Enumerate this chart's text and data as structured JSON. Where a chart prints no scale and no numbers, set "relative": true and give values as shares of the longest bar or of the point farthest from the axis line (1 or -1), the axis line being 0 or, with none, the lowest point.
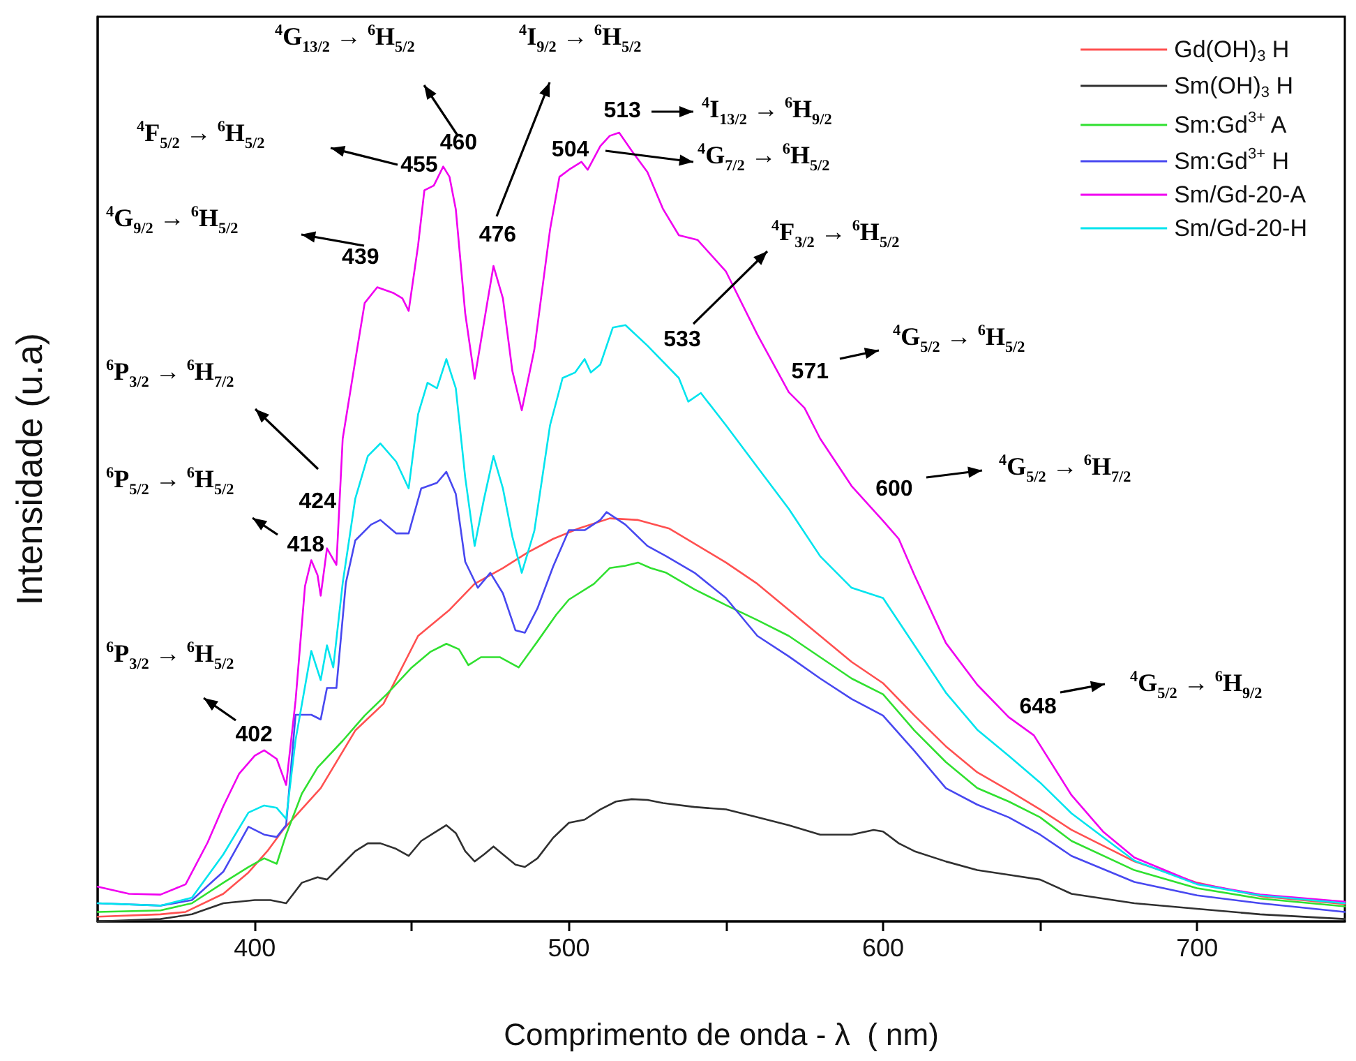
{
  "chart_data": {
    "type": "line",
    "relative": true,
    "xlabel": "Comprimento de onda - λ  ( nm)",
    "ylabel": "Intensidade (u.a)",
    "xlim": [
      350,
      747
    ],
    "xticks": [
      400,
      {
        "value": 450,
        "label": null
      },
      500,
      {
        "value": 550,
        "label": null
      },
      600,
      {
        "value": 650,
        "label": null
      },
      700
    ],
    "legend": "top right",
    "marker": "none",
    "series": [
      {
        "name": "Gd(OH)$_{3}$ H",
        "color": "#ff5050",
        "x": [
          350,
          370,
          378,
          390,
          398,
          404,
          409,
          421,
          432,
          441,
          452,
          462,
          470,
          479,
          487,
          495,
          503,
          513,
          522,
          532,
          550,
          560,
          570,
          580,
          590,
          600,
          610,
          620,
          630,
          640,
          650,
          660,
          680,
          700,
          720,
          747
        ],
        "values": [
          0.006,
          0.009,
          0.012,
          0.035,
          0.062,
          0.089,
          0.116,
          0.169,
          0.242,
          0.276,
          0.362,
          0.395,
          0.428,
          0.448,
          0.468,
          0.485,
          0.498,
          0.511,
          0.509,
          0.498,
          0.455,
          0.428,
          0.395,
          0.362,
          0.329,
          0.302,
          0.261,
          0.222,
          0.189,
          0.166,
          0.142,
          0.116,
          0.076,
          0.049,
          0.032,
          0.022
        ]
      },
      {
        "name": "Sm(OH)$_{3}$ H",
        "color": "#303030",
        "x": [
          350,
          370,
          380,
          390,
          400,
          405,
          410,
          415,
          420,
          423,
          427,
          432,
          436,
          440,
          445,
          449,
          453,
          457,
          461,
          464,
          467,
          470,
          473,
          476,
          479,
          483,
          486,
          490,
          495,
          500,
          505,
          510,
          515,
          520,
          525,
          530,
          540,
          550,
          560,
          570,
          580,
          590,
          597,
          600,
          605,
          610,
          620,
          630,
          640,
          650,
          660,
          680,
          700,
          720,
          747
        ],
        "values": [
          0,
          0.003,
          0.009,
          0.023,
          0.027,
          0.027,
          0.023,
          0.049,
          0.056,
          0.053,
          0.069,
          0.089,
          0.099,
          0.099,
          0.092,
          0.083,
          0.102,
          0.112,
          0.122,
          0.112,
          0.089,
          0.076,
          0.085,
          0.095,
          0.085,
          0.072,
          0.069,
          0.08,
          0.106,
          0.125,
          0.129,
          0.142,
          0.152,
          0.155,
          0.154,
          0.15,
          0.145,
          0.142,
          0.132,
          0.122,
          0.11,
          0.11,
          0.116,
          0.114,
          0.099,
          0.089,
          0.076,
          0.065,
          0.059,
          0.053,
          0.035,
          0.023,
          0.016,
          0.009,
          0.003
        ]
      },
      {
        "name": "Sm:Gd$^{3+}$ A",
        "color": "#30e030",
        "x": [
          350,
          370,
          380,
          390,
          398,
          403,
          407,
          410,
          415,
          420,
          428,
          435,
          442,
          450,
          456,
          461,
          465,
          468,
          472,
          478,
          484,
          490,
          496,
          500,
          508,
          513,
          518,
          522,
          526,
          531,
          540,
          550,
          560,
          570,
          580,
          590,
          600,
          610,
          620,
          630,
          640,
          650,
          660,
          680,
          700,
          720,
          747
        ],
        "values": [
          0.012,
          0.014,
          0.023,
          0.049,
          0.069,
          0.08,
          0.073,
          0.11,
          0.162,
          0.195,
          0.229,
          0.261,
          0.288,
          0.322,
          0.342,
          0.352,
          0.345,
          0.325,
          0.335,
          0.335,
          0.322,
          0.355,
          0.389,
          0.408,
          0.428,
          0.448,
          0.451,
          0.455,
          0.448,
          0.442,
          0.421,
          0.401,
          0.382,
          0.362,
          0.335,
          0.308,
          0.288,
          0.242,
          0.202,
          0.169,
          0.152,
          0.132,
          0.102,
          0.065,
          0.042,
          0.029,
          0.019
        ]
      },
      {
        "name": "Sm:Gd$^{3+}$ H",
        "color": "#4848f0",
        "x": [
          350,
          370,
          380,
          390,
          398,
          403,
          407,
          410,
          413,
          418,
          421,
          423,
          426,
          429,
          432,
          437,
          440,
          445,
          449,
          453,
          458,
          461,
          464,
          467,
          471,
          475,
          479,
          483,
          486,
          490,
          495,
          500,
          505,
          510,
          512,
          518,
          525,
          531,
          540,
          550,
          560,
          570,
          580,
          590,
          600,
          610,
          620,
          630,
          640,
          650,
          660,
          680,
          700,
          720,
          747
        ],
        "values": [
          0.023,
          0.02,
          0.027,
          0.063,
          0.12,
          0.11,
          0.107,
          0.122,
          0.262,
          0.262,
          0.256,
          0.296,
          0.296,
          0.429,
          0.483,
          0.503,
          0.509,
          0.492,
          0.492,
          0.549,
          0.556,
          0.57,
          0.542,
          0.456,
          0.423,
          0.442,
          0.416,
          0.369,
          0.366,
          0.397,
          0.45,
          0.496,
          0.496,
          0.509,
          0.519,
          0.503,
          0.476,
          0.463,
          0.442,
          0.41,
          0.362,
          0.336,
          0.308,
          0.282,
          0.261,
          0.216,
          0.169,
          0.148,
          0.132,
          0.11,
          0.083,
          0.05,
          0.033,
          0.023,
          0.012
        ]
      },
      {
        "name": "Sm/Gd-20-A",
        "color": "#f000f0",
        "x": [
          350,
          360,
          370,
          378,
          385,
          390,
          395,
          400,
          403,
          407,
          410,
          413,
          416,
          418,
          420,
          421,
          423,
          426,
          428,
          432,
          435,
          439,
          444,
          447,
          449,
          452,
          454,
          457,
          460,
          462,
          464,
          467,
          470,
          474,
          476,
          479,
          482,
          485,
          489,
          494,
          497,
          500,
          504,
          506,
          510,
          513,
          516,
          520,
          525,
          530,
          535,
          541,
          550,
          560,
          570,
          575,
          580,
          590,
          600,
          605,
          610,
          620,
          630,
          640,
          648,
          660,
          670,
          680,
          700,
          720,
          747
        ],
        "values": [
          0.044,
          0.035,
          0.034,
          0.047,
          0.1,
          0.146,
          0.187,
          0.21,
          0.217,
          0.206,
          0.173,
          0.28,
          0.425,
          0.458,
          0.439,
          0.413,
          0.473,
          0.452,
          0.612,
          0.711,
          0.784,
          0.804,
          0.797,
          0.79,
          0.774,
          0.857,
          0.927,
          0.933,
          0.957,
          0.944,
          0.903,
          0.771,
          0.688,
          0.784,
          0.831,
          0.79,
          0.698,
          0.648,
          0.725,
          0.877,
          0.944,
          0.953,
          0.963,
          0.953,
          0.983,
          0.996,
          1,
          0.977,
          0.95,
          0.903,
          0.87,
          0.864,
          0.824,
          0.744,
          0.671,
          0.651,
          0.612,
          0.552,
          0.508,
          0.485,
          0.439,
          0.353,
          0.3,
          0.259,
          0.236,
          0.16,
          0.114,
          0.081,
          0.048,
          0.034,
          0.025
        ]
      },
      {
        "name": "Sm/Gd-20-H",
        "color": "#00e4ee",
        "x": [
          350,
          370,
          380,
          390,
          398,
          403,
          407,
          410,
          413,
          418,
          421,
          423,
          425,
          428,
          432,
          436,
          440,
          445,
          449,
          452,
          455,
          458,
          461,
          464,
          467,
          470,
          473,
          476,
          479,
          482,
          485,
          489,
          494,
          498,
          502,
          505,
          507,
          510,
          514,
          518,
          525,
          535,
          538,
          542,
          550,
          560,
          570,
          580,
          590,
          600,
          610,
          620,
          630,
          640,
          650,
          660,
          680,
          700,
          720,
          747
        ],
        "values": [
          0.023,
          0.02,
          0.03,
          0.085,
          0.138,
          0.147,
          0.144,
          0.13,
          0.23,
          0.343,
          0.306,
          0.35,
          0.322,
          0.429,
          0.536,
          0.59,
          0.606,
          0.583,
          0.549,
          0.643,
          0.683,
          0.676,
          0.713,
          0.676,
          0.563,
          0.476,
          0.536,
          0.59,
          0.549,
          0.488,
          0.442,
          0.495,
          0.629,
          0.689,
          0.696,
          0.713,
          0.696,
          0.706,
          0.753,
          0.756,
          0.73,
          0.689,
          0.659,
          0.67,
          0.629,
          0.576,
          0.523,
          0.463,
          0.423,
          0.41,
          0.35,
          0.29,
          0.243,
          0.21,
          0.176,
          0.137,
          0.077,
          0.047,
          0.033,
          0.023
        ]
      }
    ],
    "annotations": [
      {
        "text": "402",
        "x": 402,
        "y": 0.217
      },
      "$^{6}$P$_{3/2}$ → $^{6}$H$_{5/2}$",
      {
        "text": "418",
        "x": 418,
        "y": 0.458
      },
      "$^{6}$P$_{5/2}$ → $^{6}$H$_{5/2}$",
      {
        "text": "424",
        "x": 424,
        "y": 0.473
      },
      "$^{6}$P$_{3/2}$ → $^{6}$H$_{7/2}$",
      {
        "text": "439",
        "x": 439,
        "y": 0.804
      },
      "$^{4}$G$_{9/2}$ → $^{6}$H$_{5/2}$",
      {
        "text": "455",
        "x": 455,
        "y": 0.933
      },
      "$^{4}$F$_{5/2}$ → $^{6}$H$_{5/2}$",
      {
        "text": "460",
        "x": 460,
        "y": 0.957
      },
      "$^{4}$G$_{13/2}$ → $^{6}$H$_{5/2}$",
      {
        "text": "476",
        "x": 476,
        "y": 0.831
      },
      "$^{4}$I$_{9/2}$ → $^{6}$H$_{5/2}$",
      {
        "text": "504",
        "x": 504,
        "y": 0.963
      },
      "$^{4}$G$_{7/2}$ → $^{6}$H$_{5/2}$",
      {
        "text": "513",
        "x": 513,
        "y": 0.996
      },
      "$^{4}$I$_{13/2}$ → $^{6}$H$_{9/2}$",
      "533",
      "$^{4}$F$_{3/2}$ → $^{6}$H$_{5/2}$",
      {
        "text": "571",
        "x": 571,
        "y": 0.671
      },
      "$^{4}$G$_{5/2}$ → $^{6}$H$_{5/2}$",
      {
        "text": "600",
        "x": 600,
        "y": 0.508
      },
      "$^{4}$G$_{5/2}$ → $^{6}$H$_{7/2}$",
      {
        "text": "648",
        "x": 648,
        "y": 0.236
      },
      "$^{4}$G$_{5/2}$ → $^{6}$H$_{9/2}$"
    ]
  }
}
